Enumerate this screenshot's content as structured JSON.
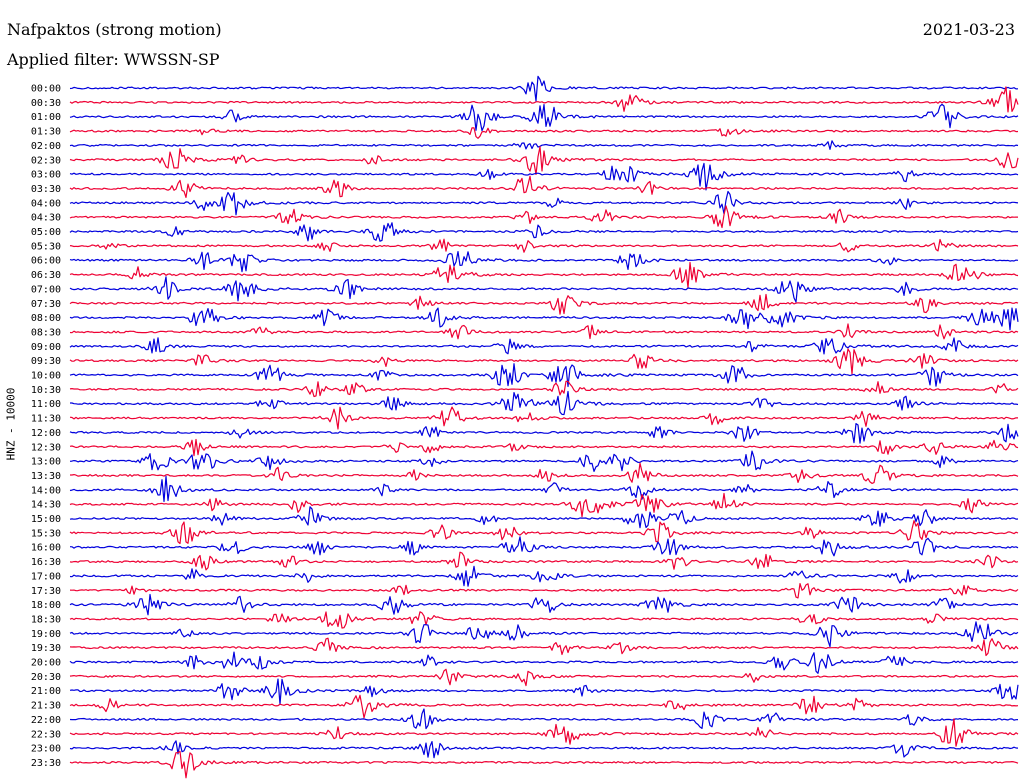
{
  "header": {
    "station": "Nafpaktos (strong motion)",
    "date": "2021-03-23",
    "filter": "Applied filter: WWSSN-SP"
  },
  "colors": {
    "even_line": "#0000dd",
    "odd_line": "#ee0033",
    "text": "#000000",
    "background": "#ffffff"
  },
  "chart_data": {
    "type": "line",
    "subtype": "helicorder",
    "title": "Nafpaktos (strong motion)",
    "subtitle": "Applied filter: WWSSN-SP",
    "date": "2021-03-23",
    "ylabel": "HNZ - 10000",
    "xlabel": "",
    "minutes_per_line": 30,
    "rows": [
      {
        "label": "00:00",
        "events": [
          [
            0.49,
            0.9
          ]
        ]
      },
      {
        "label": "00:30",
        "events": [
          [
            0.59,
            0.8
          ],
          [
            0.985,
            1.0
          ]
        ]
      },
      {
        "label": "01:00",
        "events": [
          [
            0.17,
            0.5
          ],
          [
            0.43,
            1.0
          ],
          [
            0.5,
            1.0
          ],
          [
            0.92,
            1.0
          ]
        ]
      },
      {
        "label": "01:30",
        "events": [
          [
            0.14,
            0.4
          ],
          [
            0.43,
            0.5
          ],
          [
            0.69,
            0.7
          ]
        ]
      },
      {
        "label": "02:00",
        "events": [
          [
            0.48,
            0.5
          ],
          [
            0.8,
            0.4
          ]
        ]
      },
      {
        "label": "02:30",
        "events": [
          [
            0.11,
            0.9
          ],
          [
            0.18,
            0.4
          ],
          [
            0.32,
            0.4
          ],
          [
            0.49,
            1.0
          ],
          [
            0.99,
            0.8
          ]
        ]
      },
      {
        "label": "03:00",
        "events": [
          [
            0.44,
            0.4
          ],
          [
            0.57,
            0.5
          ],
          [
            0.59,
            0.6
          ],
          [
            0.67,
            1.0
          ],
          [
            0.88,
            0.5
          ]
        ]
      },
      {
        "label": "03:30",
        "events": [
          [
            0.12,
            0.7
          ],
          [
            0.28,
            0.7
          ],
          [
            0.48,
            0.9
          ],
          [
            0.61,
            0.5
          ]
        ]
      },
      {
        "label": "04:00",
        "events": [
          [
            0.14,
            0.5
          ],
          [
            0.17,
            0.9
          ],
          [
            0.51,
            0.5
          ],
          [
            0.69,
            0.8
          ],
          [
            0.88,
            0.4
          ]
        ]
      },
      {
        "label": "04:30",
        "events": [
          [
            0.23,
            0.7
          ],
          [
            0.48,
            0.5
          ],
          [
            0.56,
            0.6
          ],
          [
            0.69,
            0.9
          ],
          [
            0.81,
            0.5
          ]
        ]
      },
      {
        "label": "05:00",
        "events": [
          [
            0.11,
            0.5
          ],
          [
            0.25,
            0.6
          ],
          [
            0.33,
            0.9
          ],
          [
            0.49,
            0.5
          ]
        ]
      },
      {
        "label": "05:30",
        "events": [
          [
            0.04,
            0.4
          ],
          [
            0.27,
            0.5
          ],
          [
            0.39,
            0.5
          ],
          [
            0.48,
            0.5
          ],
          [
            0.82,
            0.5
          ],
          [
            0.92,
            0.5
          ]
        ]
      },
      {
        "label": "06:00",
        "events": [
          [
            0.14,
            0.6
          ],
          [
            0.18,
            0.8
          ],
          [
            0.41,
            0.9
          ],
          [
            0.59,
            0.8
          ],
          [
            0.86,
            0.4
          ]
        ]
      },
      {
        "label": "06:30",
        "events": [
          [
            0.07,
            0.5
          ],
          [
            0.4,
            1.0
          ],
          [
            0.65,
            0.9
          ],
          [
            0.94,
            1.0
          ]
        ]
      },
      {
        "label": "07:00",
        "events": [
          [
            0.1,
            0.8
          ],
          [
            0.18,
            0.9
          ],
          [
            0.29,
            0.8
          ],
          [
            0.76,
            1.0
          ],
          [
            0.88,
            0.5
          ]
        ]
      },
      {
        "label": "07:30",
        "events": [
          [
            0.37,
            0.5
          ],
          [
            0.52,
            0.9
          ],
          [
            0.73,
            0.7
          ],
          [
            0.9,
            0.7
          ]
        ]
      },
      {
        "label": "08:00",
        "events": [
          [
            0.14,
            0.9
          ],
          [
            0.27,
            0.7
          ],
          [
            0.39,
            0.8
          ],
          [
            0.71,
            1.0
          ],
          [
            0.75,
            0.8
          ],
          [
            0.96,
            0.8
          ],
          [
            0.99,
            0.9
          ]
        ]
      },
      {
        "label": "08:30",
        "events": [
          [
            0.2,
            0.4
          ],
          [
            0.41,
            0.6
          ],
          [
            0.55,
            0.5
          ],
          [
            0.82,
            0.5
          ],
          [
            0.92,
            0.5
          ]
        ]
      },
      {
        "label": "09:00",
        "events": [
          [
            0.09,
            0.6
          ],
          [
            0.46,
            0.6
          ],
          [
            0.72,
            0.5
          ],
          [
            0.8,
            0.9
          ],
          [
            0.93,
            0.6
          ]
        ]
      },
      {
        "label": "09:30",
        "events": [
          [
            0.14,
            0.5
          ],
          [
            0.33,
            0.4
          ],
          [
            0.6,
            0.7
          ],
          [
            0.82,
            1.0
          ],
          [
            0.9,
            0.6
          ]
        ]
      },
      {
        "label": "10:00",
        "events": [
          [
            0.21,
            0.8
          ],
          [
            0.33,
            0.5
          ],
          [
            0.46,
            1.0
          ],
          [
            0.52,
            1.0
          ],
          [
            0.7,
            0.8
          ],
          [
            0.91,
            0.8
          ]
        ]
      },
      {
        "label": "10:30",
        "events": [
          [
            0.26,
            0.6
          ],
          [
            0.3,
            0.5
          ],
          [
            0.52,
            0.7
          ],
          [
            0.85,
            0.6
          ],
          [
            0.98,
            0.5
          ]
        ]
      },
      {
        "label": "11:00",
        "events": [
          [
            0.21,
            0.6
          ],
          [
            0.34,
            0.6
          ],
          [
            0.47,
            1.0
          ],
          [
            0.52,
            1.0
          ],
          [
            0.73,
            0.5
          ],
          [
            0.88,
            0.6
          ]
        ]
      },
      {
        "label": "11:30",
        "events": [
          [
            0.28,
            0.8
          ],
          [
            0.4,
            0.8
          ],
          [
            0.48,
            0.5
          ],
          [
            0.68,
            0.5
          ],
          [
            0.84,
            0.6
          ]
        ]
      },
      {
        "label": "12:00",
        "events": [
          [
            0.18,
            0.5
          ],
          [
            0.38,
            0.5
          ],
          [
            0.62,
            0.5
          ],
          [
            0.71,
            0.7
          ],
          [
            0.83,
            0.8
          ],
          [
            0.99,
            0.7
          ]
        ]
      },
      {
        "label": "12:30",
        "events": [
          [
            0.13,
            0.6
          ],
          [
            0.34,
            0.5
          ],
          [
            0.38,
            0.6
          ],
          [
            0.47,
            0.4
          ],
          [
            0.86,
            0.6
          ],
          [
            0.91,
            0.6
          ],
          [
            0.98,
            0.7
          ]
        ]
      },
      {
        "label": "13:00",
        "events": [
          [
            0.09,
            0.8
          ],
          [
            0.14,
            0.9
          ],
          [
            0.21,
            0.6
          ],
          [
            0.38,
            0.5
          ],
          [
            0.55,
            0.7
          ],
          [
            0.58,
            0.6
          ],
          [
            0.72,
            0.8
          ],
          [
            0.92,
            0.5
          ]
        ]
      },
      {
        "label": "13:30",
        "events": [
          [
            0.22,
            0.6
          ],
          [
            0.36,
            0.5
          ],
          [
            0.5,
            0.5
          ],
          [
            0.6,
            0.8
          ],
          [
            0.77,
            0.6
          ],
          [
            0.85,
            0.9
          ]
        ]
      },
      {
        "label": "14:00",
        "events": [
          [
            0.1,
            0.9
          ],
          [
            0.33,
            0.4
          ],
          [
            0.51,
            0.5
          ],
          [
            0.6,
            0.7
          ],
          [
            0.71,
            0.5
          ],
          [
            0.8,
            0.7
          ]
        ]
      },
      {
        "label": "14:30",
        "events": [
          [
            0.15,
            0.5
          ],
          [
            0.24,
            0.5
          ],
          [
            0.54,
            0.8
          ],
          [
            0.56,
            0.6
          ],
          [
            0.61,
            0.9
          ],
          [
            0.69,
            0.8
          ],
          [
            0.95,
            0.6
          ]
        ]
      },
      {
        "label": "15:00",
        "events": [
          [
            0.16,
            0.5
          ],
          [
            0.25,
            0.8
          ],
          [
            0.44,
            0.5
          ],
          [
            0.6,
            0.9
          ],
          [
            0.64,
            0.7
          ],
          [
            0.85,
            0.8
          ],
          [
            0.9,
            0.6
          ]
        ]
      },
      {
        "label": "15:30",
        "events": [
          [
            0.12,
            0.9
          ],
          [
            0.39,
            0.6
          ],
          [
            0.46,
            0.6
          ],
          [
            0.62,
            0.8
          ],
          [
            0.78,
            0.5
          ],
          [
            0.89,
            0.8
          ]
        ]
      },
      {
        "label": "16:00",
        "events": [
          [
            0.17,
            0.7
          ],
          [
            0.26,
            0.6
          ],
          [
            0.36,
            0.5
          ],
          [
            0.47,
            0.9
          ],
          [
            0.63,
            0.8
          ],
          [
            0.8,
            0.7
          ],
          [
            0.9,
            0.7
          ]
        ]
      },
      {
        "label": "16:30",
        "events": [
          [
            0.14,
            0.6
          ],
          [
            0.23,
            0.5
          ],
          [
            0.41,
            0.6
          ],
          [
            0.64,
            0.6
          ],
          [
            0.73,
            0.7
          ],
          [
            0.97,
            0.6
          ]
        ]
      },
      {
        "label": "17:00",
        "events": [
          [
            0.13,
            0.5
          ],
          [
            0.25,
            0.5
          ],
          [
            0.42,
            0.8
          ],
          [
            0.5,
            0.7
          ],
          [
            0.77,
            0.6
          ],
          [
            0.88,
            0.6
          ]
        ]
      },
      {
        "label": "17:30",
        "events": [
          [
            0.07,
            0.4
          ],
          [
            0.35,
            0.4
          ],
          [
            0.77,
            0.7
          ],
          [
            0.94,
            0.5
          ]
        ]
      },
      {
        "label": "18:00",
        "events": [
          [
            0.08,
            0.9
          ],
          [
            0.18,
            0.6
          ],
          [
            0.34,
            0.8
          ],
          [
            0.5,
            0.8
          ],
          [
            0.62,
            0.9
          ],
          [
            0.82,
            0.7
          ],
          [
            0.92,
            0.6
          ]
        ]
      },
      {
        "label": "18:30",
        "events": [
          [
            0.22,
            0.5
          ],
          [
            0.28,
            0.9
          ],
          [
            0.37,
            0.7
          ],
          [
            0.78,
            0.6
          ],
          [
            0.91,
            0.5
          ]
        ]
      },
      {
        "label": "19:00",
        "events": [
          [
            0.12,
            0.4
          ],
          [
            0.37,
            0.8
          ],
          [
            0.43,
            0.7
          ],
          [
            0.47,
            0.6
          ],
          [
            0.8,
            0.9
          ],
          [
            0.96,
            1.0
          ]
        ]
      },
      {
        "label": "19:30",
        "events": [
          [
            0.27,
            0.6
          ],
          [
            0.52,
            0.6
          ],
          [
            0.58,
            0.5
          ],
          [
            0.97,
            0.7
          ]
        ]
      },
      {
        "label": "20:00",
        "events": [
          [
            0.13,
            0.5
          ],
          [
            0.17,
            0.7
          ],
          [
            0.2,
            0.5
          ],
          [
            0.38,
            0.5
          ],
          [
            0.75,
            0.7
          ],
          [
            0.79,
            0.8
          ],
          [
            0.87,
            0.6
          ]
        ]
      },
      {
        "label": "20:30",
        "events": [
          [
            0.4,
            0.6
          ],
          [
            0.48,
            0.6
          ],
          [
            0.72,
            0.4
          ]
        ]
      },
      {
        "label": "21:00",
        "events": [
          [
            0.17,
            0.9
          ],
          [
            0.22,
            0.9
          ],
          [
            0.32,
            0.5
          ],
          [
            0.54,
            0.4
          ],
          [
            0.99,
            0.8
          ]
        ]
      },
      {
        "label": "21:30",
        "events": [
          [
            0.04,
            0.5
          ],
          [
            0.31,
            1.0
          ],
          [
            0.64,
            0.7
          ],
          [
            0.78,
            0.7
          ],
          [
            0.83,
            0.5
          ]
        ]
      },
      {
        "label": "22:00",
        "events": [
          [
            0.37,
            0.8
          ],
          [
            0.67,
            0.7
          ],
          [
            0.74,
            0.5
          ],
          [
            0.89,
            0.5
          ]
        ]
      },
      {
        "label": "22:30",
        "events": [
          [
            0.28,
            0.6
          ],
          [
            0.52,
            1.0
          ],
          [
            0.73,
            0.6
          ],
          [
            0.93,
            1.0
          ]
        ]
      },
      {
        "label": "23:00",
        "events": [
          [
            0.11,
            0.6
          ],
          [
            0.38,
            0.7
          ],
          [
            0.88,
            0.7
          ]
        ]
      },
      {
        "label": "23:30",
        "events": [
          [
            0.12,
            1.0
          ]
        ]
      }
    ]
  }
}
